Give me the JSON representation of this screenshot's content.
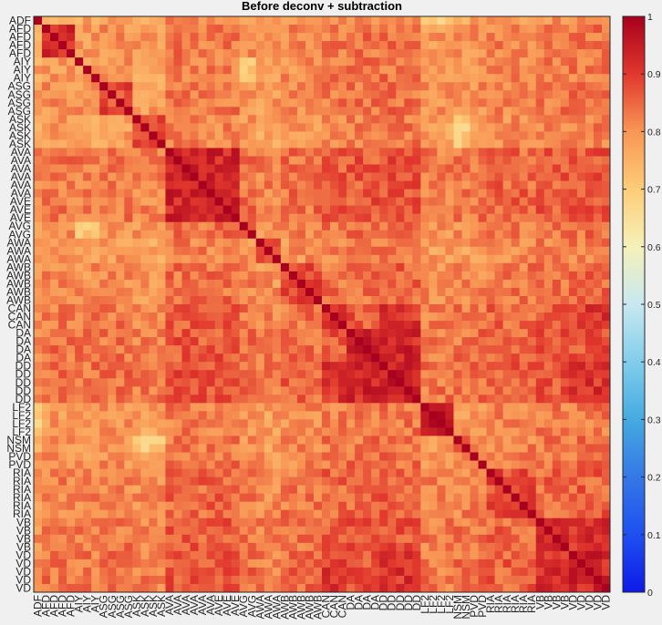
{
  "chart_data": {
    "type": "heatmap",
    "title": "Before deconv + subtraction",
    "xlabel": "",
    "ylabel": "",
    "colormap": "RdYlBu_r",
    "clim": [
      0,
      1
    ],
    "colorbar_ticks": [
      0,
      0.1,
      0.2,
      0.3,
      0.4,
      0.5,
      0.6,
      0.7,
      0.8,
      0.9,
      1
    ],
    "colorbar_tick_labels": [
      "0",
      "0.1",
      "0.2",
      "0.3",
      "0.4",
      "0.5",
      "0.6",
      "0.7",
      "0.8",
      "0.9",
      "1"
    ],
    "labels": [
      "ADF",
      "AFD",
      "AFD",
      "AFD",
      "AFD",
      "AIY",
      "AIY",
      "AIY",
      "ASG",
      "ASG",
      "ASG",
      "ASG",
      "ASK",
      "ASK",
      "ASK",
      "ASK",
      "AVA",
      "AVA",
      "AVA",
      "AVA",
      "AVA",
      "AVA",
      "AVE",
      "AVE",
      "AVE",
      "AVG",
      "AVG",
      "AWA",
      "AWA",
      "AWA",
      "AWB",
      "AWB",
      "AWB",
      "AWB",
      "AWB",
      "CAN",
      "CAN",
      "CAN",
      "DA",
      "DA",
      "DA",
      "DA",
      "DD",
      "DD",
      "DD",
      "DD",
      "DD",
      "LF2",
      "LF2",
      "LF2",
      "LF2",
      "NSM",
      "NSM",
      "PVD",
      "PVD",
      "RIA",
      "RIA",
      "RIA",
      "RIA",
      "RIA",
      "RIA",
      "VB",
      "VB",
      "VB",
      "VB",
      "VD",
      "VD",
      "VD",
      "VD",
      "VD"
    ],
    "groups": [
      {
        "name": "ADF",
        "size": 1,
        "internal": 1.0,
        "avg": 0.75
      },
      {
        "name": "AFD",
        "size": 4,
        "internal": 0.93,
        "avg": 0.8
      },
      {
        "name": "AIY",
        "size": 3,
        "internal": 0.79,
        "avg": 0.79
      },
      {
        "name": "ASG",
        "size": 4,
        "internal": 0.88,
        "avg": 0.8
      },
      {
        "name": "ASK",
        "size": 4,
        "internal": 0.9,
        "avg": 0.77
      },
      {
        "name": "AVA",
        "size": 6,
        "internal": 0.94,
        "avg": 0.86
      },
      {
        "name": "AVE",
        "size": 3,
        "internal": 0.94,
        "avg": 0.86
      },
      {
        "name": "AVG",
        "size": 2,
        "internal": 0.85,
        "avg": 0.81
      },
      {
        "name": "AWA",
        "size": 3,
        "internal": 0.88,
        "avg": 0.78
      },
      {
        "name": "AWB",
        "size": 5,
        "internal": 0.88,
        "avg": 0.82
      },
      {
        "name": "CAN",
        "size": 3,
        "internal": 0.92,
        "avg": 0.86
      },
      {
        "name": "DA",
        "size": 4,
        "internal": 0.93,
        "avg": 0.87
      },
      {
        "name": "DD",
        "size": 5,
        "internal": 0.94,
        "avg": 0.88
      },
      {
        "name": "LF2",
        "size": 4,
        "internal": 0.97,
        "avg": 0.79
      },
      {
        "name": "NSM",
        "size": 2,
        "internal": 0.86,
        "avg": 0.8
      },
      {
        "name": "PVD",
        "size": 2,
        "internal": 0.85,
        "avg": 0.81
      },
      {
        "name": "RIA",
        "size": 6,
        "internal": 0.88,
        "avg": 0.84
      },
      {
        "name": "VB",
        "size": 4,
        "internal": 0.92,
        "avg": 0.86
      },
      {
        "name": "VD",
        "size": 5,
        "internal": 0.93,
        "avg": 0.87
      }
    ],
    "strong_pairs": [
      [
        "AVA",
        "AVE",
        0.93
      ],
      [
        "CAN",
        "DD",
        0.91
      ],
      [
        "DA",
        "DD",
        0.93
      ],
      [
        "VB",
        "VD",
        0.92
      ],
      [
        "DD",
        "VD",
        0.91
      ],
      [
        "CAN",
        "VD",
        0.9
      ]
    ],
    "weak_pairs": [
      [
        "LF2",
        "ADF",
        0.7
      ],
      [
        "NSM",
        "ASK",
        0.7
      ],
      [
        "AIY",
        "AVG",
        0.72
      ]
    ],
    "diagonal_value": 1.0
  }
}
